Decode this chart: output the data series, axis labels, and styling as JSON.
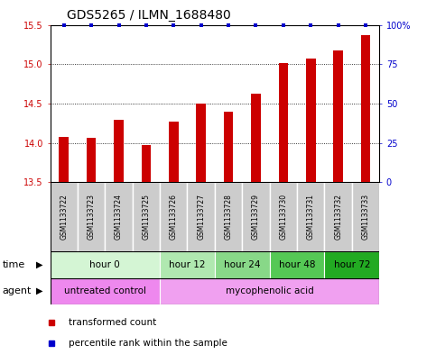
{
  "title": "GDS5265 / ILMN_1688480",
  "samples": [
    "GSM1133722",
    "GSM1133723",
    "GSM1133724",
    "GSM1133725",
    "GSM1133726",
    "GSM1133727",
    "GSM1133728",
    "GSM1133729",
    "GSM1133730",
    "GSM1133731",
    "GSM1133732",
    "GSM1133733"
  ],
  "bar_values": [
    14.08,
    14.07,
    14.29,
    13.97,
    14.27,
    14.5,
    14.4,
    14.63,
    15.01,
    15.07,
    15.17,
    15.37
  ],
  "percentile_values": [
    100,
    100,
    100,
    100,
    100,
    100,
    100,
    100,
    100,
    100,
    100,
    100
  ],
  "bar_color": "#cc0000",
  "percentile_color": "#0000cc",
  "ylim": [
    13.5,
    15.5
  ],
  "yticks_left": [
    13.5,
    14.0,
    14.5,
    15.0,
    15.5
  ],
  "yticks_right": [
    0,
    25,
    50,
    75,
    100
  ],
  "yticks_right_labels": [
    "0",
    "25",
    "50",
    "75",
    "100%"
  ],
  "ylabel_left_color": "#cc0000",
  "ylabel_right_color": "#0000cc",
  "time_groups": [
    {
      "label": "hour 0",
      "start": 0,
      "end": 4,
      "color": "#d4f5d4"
    },
    {
      "label": "hour 12",
      "start": 4,
      "end": 6,
      "color": "#b0e8b0"
    },
    {
      "label": "hour 24",
      "start": 6,
      "end": 8,
      "color": "#88d888"
    },
    {
      "label": "hour 48",
      "start": 8,
      "end": 10,
      "color": "#55c855"
    },
    {
      "label": "hour 72",
      "start": 10,
      "end": 12,
      "color": "#22aa22"
    }
  ],
  "agent_groups": [
    {
      "label": "untreated control",
      "start": 0,
      "end": 4,
      "color": "#ee88ee"
    },
    {
      "label": "mycophenolic acid",
      "start": 4,
      "end": 12,
      "color": "#f0a0f0"
    }
  ],
  "legend_bar_label": "transformed count",
  "legend_pct_label": "percentile rank within the sample",
  "time_label": "time",
  "agent_label": "agent",
  "sample_bg_color": "#cccccc",
  "sample_border_color": "#888888"
}
